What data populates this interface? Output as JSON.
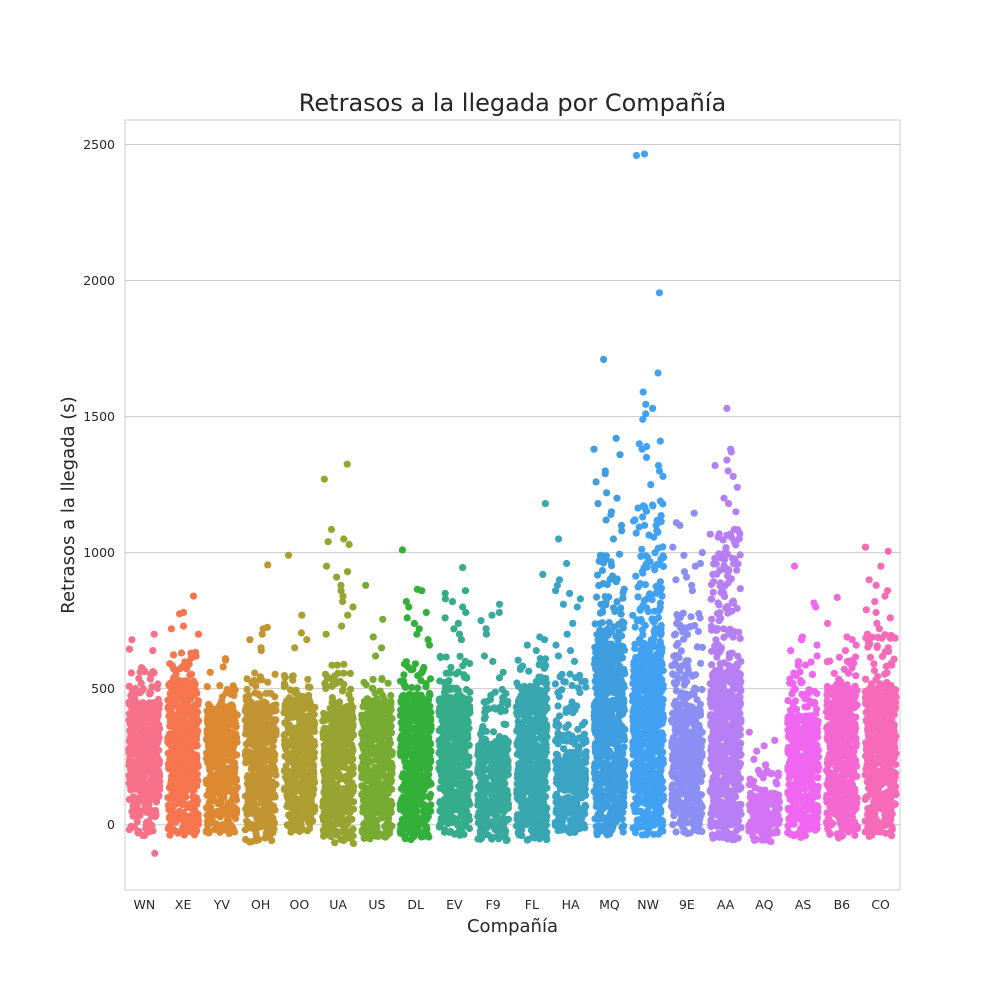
{
  "chart_data": {
    "type": "scatter",
    "title": "Retrasos a la llegada por Compañía",
    "xlabel": "Compañía",
    "ylabel": "Retrasos a la llegada (s)",
    "ylim": [
      -240,
      2590
    ],
    "yticks": [
      0,
      500,
      1000,
      1500,
      2000,
      2500
    ],
    "grid": "horizontal",
    "categories": [
      "WN",
      "XE",
      "YV",
      "OH",
      "OO",
      "UA",
      "US",
      "DL",
      "EV",
      "F9",
      "FL",
      "HA",
      "MQ",
      "NW",
      "9E",
      "AA",
      "AQ",
      "AS",
      "B6",
      "CO"
    ],
    "colors": [
      "#f77189",
      "#f7754f",
      "#dc8932",
      "#c39532",
      "#ae9d31",
      "#97a431",
      "#77ab31",
      "#33b039",
      "#36ad8a",
      "#38aa9d",
      "#39a7b0",
      "#3ba3c3",
      "#3e9ee0",
      "#41a1f3",
      "#8b8ff4",
      "#b67ff4",
      "#d473f4",
      "#f166f0",
      "#f567d1",
      "#f66ab8"
    ],
    "series": [
      {
        "category": "WN",
        "dense_min": -40,
        "dense_max": 450,
        "fringe_max": 580,
        "outliers": [
          645,
          640,
          -105,
          700,
          680
        ]
      },
      {
        "category": "XE",
        "dense_min": -40,
        "dense_max": 520,
        "fringe_max": 640,
        "outliers": [
          840,
          780,
          775,
          730,
          720,
          700
        ]
      },
      {
        "category": "YV",
        "dense_min": -35,
        "dense_max": 430,
        "fringe_max": 520,
        "outliers": [
          610,
          605,
          580,
          560
        ]
      },
      {
        "category": "OH",
        "dense_min": -65,
        "dense_max": 450,
        "fringe_max": 560,
        "outliers": [
          955,
          725,
          720,
          700,
          680,
          650,
          640
        ]
      },
      {
        "category": "OO",
        "dense_min": -35,
        "dense_max": 460,
        "fringe_max": 560,
        "outliers": [
          990,
          770,
          705,
          680,
          650
        ]
      },
      {
        "category": "UA",
        "dense_min": -70,
        "dense_max": 430,
        "fringe_max": 600,
        "outliers": [
          1325,
          1270,
          1085,
          1050,
          1040,
          1030,
          950,
          930,
          910,
          880,
          860,
          840,
          820,
          800,
          770,
          730,
          700
        ]
      },
      {
        "category": "US",
        "dense_min": -55,
        "dense_max": 450,
        "fringe_max": 540,
        "outliers": [
          880,
          755,
          690,
          650,
          620
        ]
      },
      {
        "category": "DL",
        "dense_min": -55,
        "dense_max": 480,
        "fringe_max": 600,
        "outliers": [
          1010,
          865,
          860,
          820,
          800,
          780,
          760,
          740,
          720,
          700,
          680,
          660
        ]
      },
      {
        "category": "EV",
        "dense_min": -45,
        "dense_max": 470,
        "fringe_max": 620,
        "outliers": [
          945,
          860,
          850,
          830,
          820,
          800,
          780,
          760,
          740,
          720,
          700,
          680
        ]
      },
      {
        "category": "F9",
        "dense_min": -60,
        "dense_max": 300,
        "fringe_max": 500,
        "outliers": [
          810,
          780,
          770,
          750,
          720,
          700,
          620,
          600,
          560,
          540
        ]
      },
      {
        "category": "FL",
        "dense_min": -65,
        "dense_max": 500,
        "fringe_max": 620,
        "outliers": [
          1180,
          920,
          690,
          680,
          660,
          640
        ]
      },
      {
        "category": "HA",
        "dense_min": -40,
        "dense_max": 260,
        "fringe_max": 560,
        "outliers": [
          1050,
          960,
          900,
          880,
          860,
          850,
          830,
          810,
          800,
          740,
          700,
          660,
          640,
          620,
          600
        ]
      },
      {
        "category": "MQ",
        "dense_min": -40,
        "dense_max": 660,
        "fringe_max": 1000,
        "outliers": [
          1710,
          1420,
          1380,
          1360,
          1300,
          1290,
          1260,
          1220,
          1200,
          1180,
          1150,
          1140,
          1120,
          1100,
          1080,
          1050
        ]
      },
      {
        "category": "NW",
        "dense_min": -40,
        "dense_max": 620,
        "fringe_max": 1200,
        "outliers": [
          2465,
          2460,
          1955,
          1660,
          1590,
          1545,
          1530,
          1510,
          1490,
          1410,
          1400,
          1390,
          1380,
          1350,
          1320,
          1300,
          1280,
          1250
        ]
      },
      {
        "category": "9E",
        "dense_min": -35,
        "dense_max": 420,
        "fringe_max": 800,
        "outliers": [
          1145,
          1110,
          1100,
          1020,
          1000,
          990,
          960,
          950,
          930,
          910,
          900,
          880,
          860
        ]
      },
      {
        "category": "AA",
        "dense_min": -60,
        "dense_max": 560,
        "fringe_max": 1100,
        "outliers": [
          1530,
          1380,
          1370,
          1340,
          1320,
          1300,
          1280,
          1240,
          1200,
          1180,
          1150
        ]
      },
      {
        "category": "AQ",
        "dense_min": -65,
        "dense_max": 110,
        "fringe_max": 200,
        "outliers": [
          340,
          310,
          290,
          270,
          240,
          220,
          200,
          180,
          160
        ]
      },
      {
        "category": "AS",
        "dense_min": -50,
        "dense_max": 400,
        "fringe_max": 600,
        "outliers": [
          950,
          815,
          800,
          690,
          680,
          660,
          640,
          620
        ]
      },
      {
        "category": "B6",
        "dense_min": -50,
        "dense_max": 500,
        "fringe_max": 620,
        "outliers": [
          835,
          740,
          690,
          680,
          660,
          640
        ]
      },
      {
        "category": "CO",
        "dense_min": -50,
        "dense_max": 500,
        "fringe_max": 700,
        "outliers": [
          1020,
          1005,
          950,
          900,
          880,
          860,
          840,
          820,
          790,
          780,
          760,
          740,
          720,
          700
        ]
      }
    ]
  }
}
